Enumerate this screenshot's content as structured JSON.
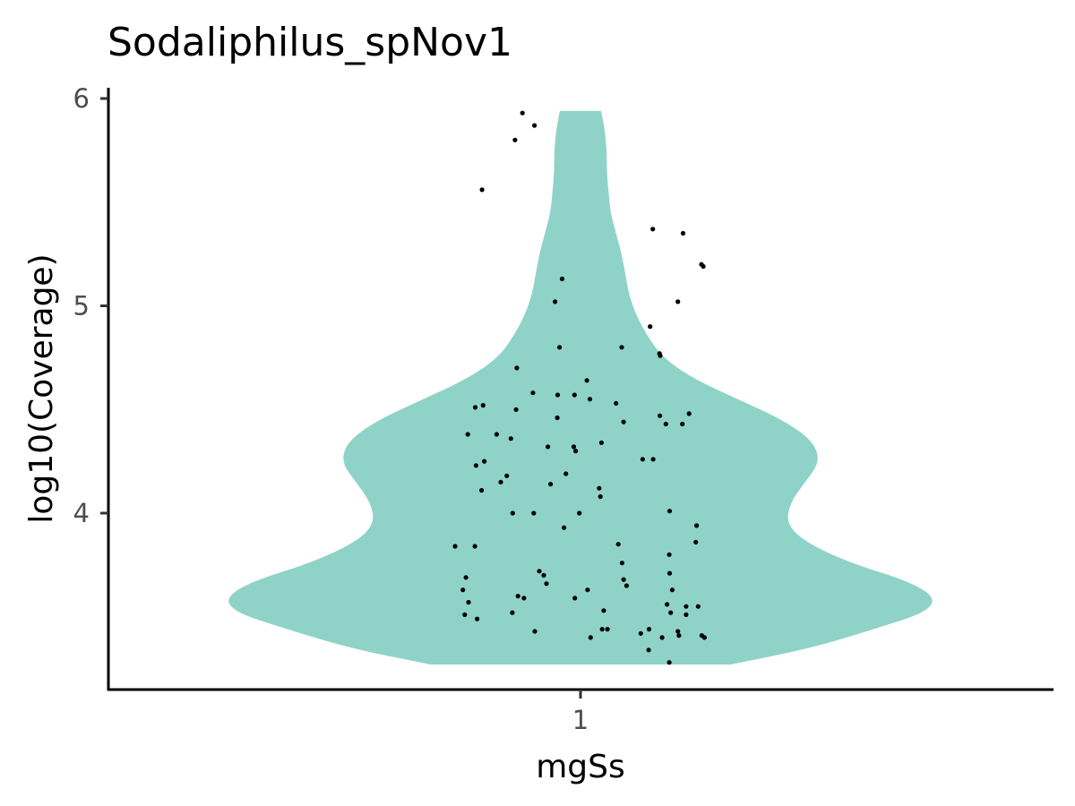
{
  "chart_data": {
    "type": "violin",
    "title": "Sodaliphilus_spNov1",
    "xlabel": "mgSs",
    "ylabel": "log10(Coverage)",
    "categories": [
      "1"
    ],
    "ylim": [
      3.15,
      6.03
    ],
    "yticks": [
      4,
      5,
      6
    ],
    "grid": false,
    "legend": "none",
    "violin_color": "#8fd3c8",
    "point_color": "#000000",
    "violin_range": [
      3.27,
      5.94
    ],
    "density_profile": [
      {
        "y": 3.27,
        "halfwidth": 0.4
      },
      {
        "y": 3.35,
        "halfwidth": 0.62
      },
      {
        "y": 3.45,
        "halfwidth": 0.8
      },
      {
        "y": 3.52,
        "halfwidth": 0.92
      },
      {
        "y": 3.59,
        "halfwidth": 0.95
      },
      {
        "y": 3.67,
        "halfwidth": 0.88
      },
      {
        "y": 3.76,
        "halfwidth": 0.72
      },
      {
        "y": 3.86,
        "halfwidth": 0.6
      },
      {
        "y": 3.95,
        "halfwidth": 0.55
      },
      {
        "y": 4.05,
        "halfwidth": 0.56
      },
      {
        "y": 4.15,
        "halfwidth": 0.6
      },
      {
        "y": 4.25,
        "halfwidth": 0.64
      },
      {
        "y": 4.35,
        "halfwidth": 0.62
      },
      {
        "y": 4.45,
        "halfwidth": 0.54
      },
      {
        "y": 4.55,
        "halfwidth": 0.42
      },
      {
        "y": 4.65,
        "halfwidth": 0.3
      },
      {
        "y": 4.75,
        "halfwidth": 0.22
      },
      {
        "y": 4.85,
        "halfwidth": 0.18
      },
      {
        "y": 4.95,
        "halfwidth": 0.15
      },
      {
        "y": 5.05,
        "halfwidth": 0.13
      },
      {
        "y": 5.15,
        "halfwidth": 0.12
      },
      {
        "y": 5.25,
        "halfwidth": 0.11
      },
      {
        "y": 5.35,
        "halfwidth": 0.095
      },
      {
        "y": 5.45,
        "halfwidth": 0.08
      },
      {
        "y": 5.55,
        "halfwidth": 0.075
      },
      {
        "y": 5.65,
        "halfwidth": 0.07
      },
      {
        "y": 5.75,
        "halfwidth": 0.07
      },
      {
        "y": 5.85,
        "halfwidth": 0.065
      },
      {
        "y": 5.94,
        "halfwidth": 0.055
      }
    ],
    "points": [
      {
        "x": -0.155,
        "y": 5.93
      },
      {
        "x": -0.175,
        "y": 5.8
      },
      {
        "x": -0.123,
        "y": 5.87
      },
      {
        "x": -0.263,
        "y": 5.56
      },
      {
        "x": 0.193,
        "y": 5.37
      },
      {
        "x": 0.274,
        "y": 5.35
      },
      {
        "x": 0.323,
        "y": 5.2
      },
      {
        "x": 0.328,
        "y": 5.19
      },
      {
        "x": 0.26,
        "y": 5.02
      },
      {
        "x": -0.049,
        "y": 5.13
      },
      {
        "x": -0.068,
        "y": 5.02
      },
      {
        "x": 0.186,
        "y": 4.9
      },
      {
        "x": 0.11,
        "y": 4.8
      },
      {
        "x": 0.211,
        "y": 4.77
      },
      {
        "x": 0.213,
        "y": 4.76
      },
      {
        "x": -0.056,
        "y": 4.8
      },
      {
        "x": -0.17,
        "y": 4.7
      },
      {
        "x": 0.017,
        "y": 4.64
      },
      {
        "x": -0.127,
        "y": 4.58
      },
      {
        "x": -0.061,
        "y": 4.57
      },
      {
        "x": -0.016,
        "y": 4.57
      },
      {
        "x": 0.025,
        "y": 4.55
      },
      {
        "x": 0.095,
        "y": 4.53
      },
      {
        "x": -0.26,
        "y": 4.52
      },
      {
        "x": -0.281,
        "y": 4.51
      },
      {
        "x": -0.172,
        "y": 4.5
      },
      {
        "x": 0.212,
        "y": 4.47
      },
      {
        "x": 0.29,
        "y": 4.48
      },
      {
        "x": -0.062,
        "y": 4.46
      },
      {
        "x": 0.115,
        "y": 4.44
      },
      {
        "x": 0.228,
        "y": 4.43
      },
      {
        "x": 0.272,
        "y": 4.43
      },
      {
        "x": -0.301,
        "y": 4.38
      },
      {
        "x": -0.224,
        "y": 4.38
      },
      {
        "x": -0.186,
        "y": 4.36
      },
      {
        "x": 0.056,
        "y": 4.34
      },
      {
        "x": -0.087,
        "y": 4.32
      },
      {
        "x": -0.018,
        "y": 4.32
      },
      {
        "x": -0.013,
        "y": 4.3
      },
      {
        "x": 0.166,
        "y": 4.26
      },
      {
        "x": 0.194,
        "y": 4.26
      },
      {
        "x": -0.257,
        "y": 4.25
      },
      {
        "x": -0.279,
        "y": 4.23
      },
      {
        "x": -0.039,
        "y": 4.19
      },
      {
        "x": -0.197,
        "y": 4.18
      },
      {
        "x": -0.213,
        "y": 4.15
      },
      {
        "x": -0.08,
        "y": 4.14
      },
      {
        "x": 0.05,
        "y": 4.12
      },
      {
        "x": -0.264,
        "y": 4.11
      },
      {
        "x": 0.053,
        "y": 4.08
      },
      {
        "x": -0.181,
        "y": 4.0
      },
      {
        "x": -0.125,
        "y": 4.0
      },
      {
        "x": -0.003,
        "y": 4.0
      },
      {
        "x": 0.238,
        "y": 4.01
      },
      {
        "x": 0.31,
        "y": 3.94
      },
      {
        "x": -0.044,
        "y": 3.93
      },
      {
        "x": 0.308,
        "y": 3.86
      },
      {
        "x": -0.335,
        "y": 3.84
      },
      {
        "x": -0.282,
        "y": 3.84
      },
      {
        "x": 0.101,
        "y": 3.85
      },
      {
        "x": 0.237,
        "y": 3.8
      },
      {
        "x": 0.111,
        "y": 3.76
      },
      {
        "x": -0.11,
        "y": 3.72
      },
      {
        "x": -0.098,
        "y": 3.7
      },
      {
        "x": 0.238,
        "y": 3.71
      },
      {
        "x": -0.306,
        "y": 3.69
      },
      {
        "x": 0.115,
        "y": 3.68
      },
      {
        "x": -0.091,
        "y": 3.66
      },
      {
        "x": 0.123,
        "y": 3.65
      },
      {
        "x": 0.019,
        "y": 3.63
      },
      {
        "x": -0.314,
        "y": 3.63
      },
      {
        "x": 0.245,
        "y": 3.63
      },
      {
        "x": -0.167,
        "y": 3.6
      },
      {
        "x": -0.151,
        "y": 3.59
      },
      {
        "x": -0.015,
        "y": 3.59
      },
      {
        "x": -0.299,
        "y": 3.57
      },
      {
        "x": 0.231,
        "y": 3.56
      },
      {
        "x": 0.282,
        "y": 3.55
      },
      {
        "x": 0.314,
        "y": 3.55
      },
      {
        "x": 0.062,
        "y": 3.53
      },
      {
        "x": 0.241,
        "y": 3.52
      },
      {
        "x": -0.182,
        "y": 3.52
      },
      {
        "x": 0.282,
        "y": 3.51
      },
      {
        "x": -0.309,
        "y": 3.51
      },
      {
        "x": -0.276,
        "y": 3.49
      },
      {
        "x": 0.058,
        "y": 3.44
      },
      {
        "x": 0.072,
        "y": 3.44
      },
      {
        "x": 0.183,
        "y": 3.44
      },
      {
        "x": -0.122,
        "y": 3.43
      },
      {
        "x": 0.161,
        "y": 3.42
      },
      {
        "x": 0.26,
        "y": 3.43
      },
      {
        "x": 0.263,
        "y": 3.41
      },
      {
        "x": 0.218,
        "y": 3.4
      },
      {
        "x": 0.324,
        "y": 3.41
      },
      {
        "x": 0.331,
        "y": 3.4
      },
      {
        "x": 0.027,
        "y": 3.4
      },
      {
        "x": 0.182,
        "y": 3.34
      },
      {
        "x": 0.237,
        "y": 3.28
      }
    ]
  }
}
